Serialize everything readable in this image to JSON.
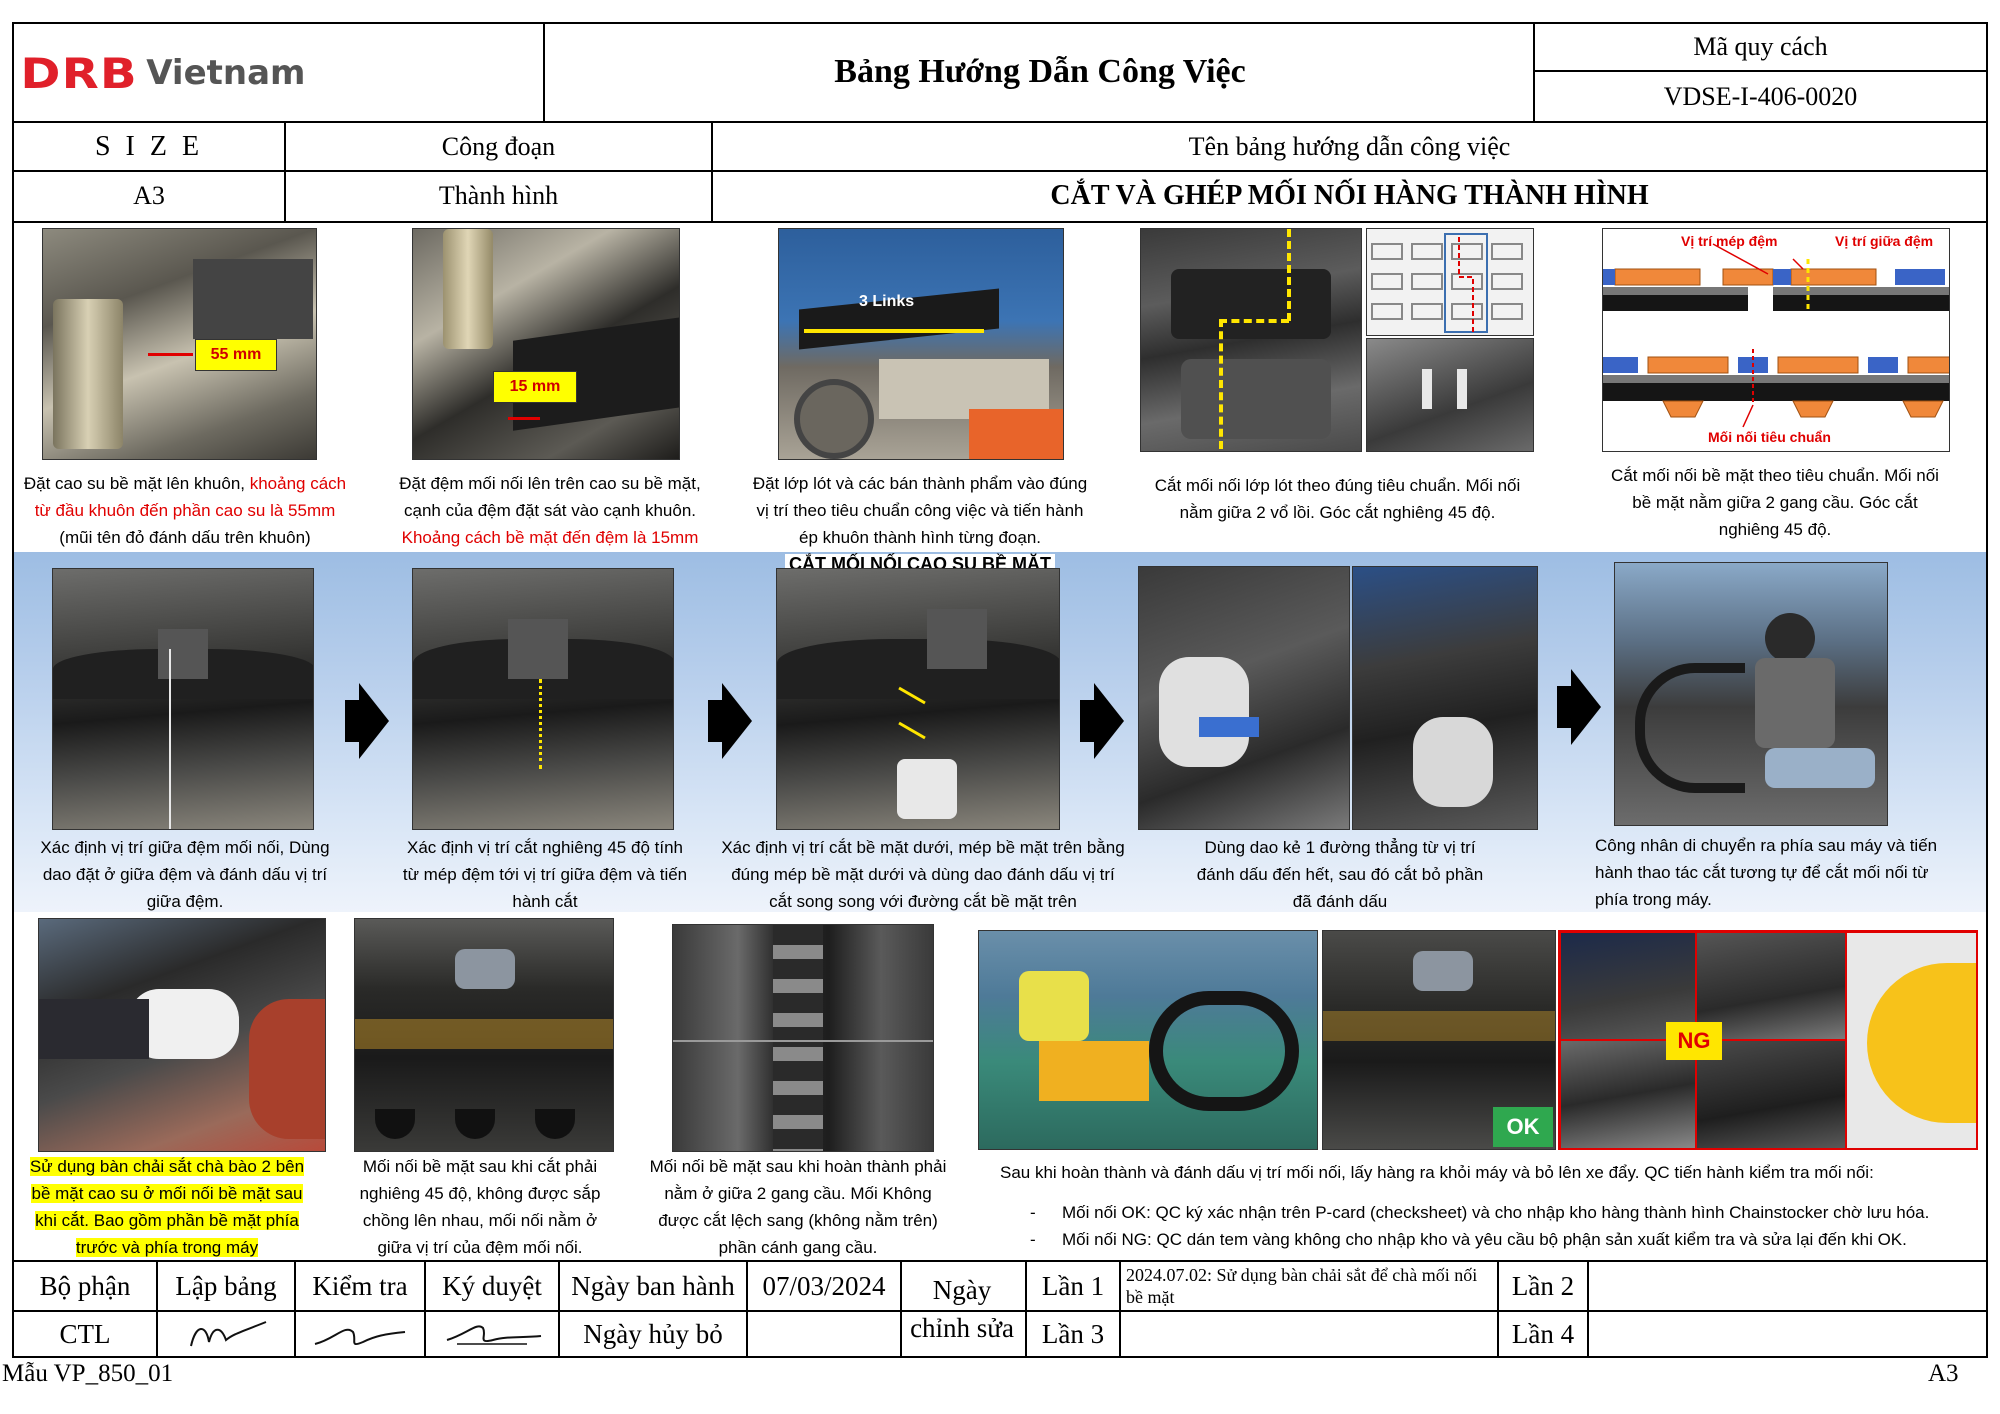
{
  "header": {
    "logo_brand": "DRB",
    "logo_country": "Vietnam",
    "title": "Bảng Hướng Dẫn Công Việc",
    "spec_label": "Mã quy cách",
    "spec_code": "VDSE-I-406-0020"
  },
  "info": {
    "size_label": "S I Z E",
    "size_value": "A3",
    "process_label": "Công đoạn",
    "process_value": "Thành hình",
    "guide_name_label": "Tên bảng hướng dẫn công việc",
    "guide_name_value": "CẮT VÀ GHÉP MỐI NỐI HÀNG THÀNH HÌNH"
  },
  "row1": {
    "step1": {
      "photo_label": "55 mm",
      "cap_a": "Đặt cao su bề mặt lên khuôn, ",
      "cap_b": "khoảng cách từ đầu khuôn đến phần cao su là 55mm",
      "cap_c": " (mũi tên đỏ đánh dấu trên khuôn)"
    },
    "step2": {
      "photo_label": "15 mm",
      "cap_a": "Đặt đệm mối nối lên trên cao su bề mặt, cạnh của đệm đặt sát vào cạnh khuôn. ",
      "cap_b": "Khoảng cách bề mặt đến đệm là 15mm"
    },
    "step3": {
      "photo_label": "3 Links",
      "cap": "Đặt lớp lót và các bán thành phẩm vào đúng vị trí theo tiêu chuẩn công việc và tiến hành ép khuôn thành hình từng đoạn."
    },
    "step4": {
      "cap": "Cắt mối nối lớp lót theo đúng tiêu chuẩn. Mối nối nằm giữa 2 vổ lồi. Góc cắt nghiêng 45 độ."
    },
    "step5": {
      "label_edge": "Vị trí mép đệm",
      "label_mid": "Vị trí giữa đệm",
      "label_std": "Mối nối tiêu chuẩn",
      "cap": "Cắt mối nối bề mặt theo tiêu chuẩn. Mối nối bề mặt nằm giữa 2 gang cầu. Góc cắt nghiêng 45 độ."
    }
  },
  "row2": {
    "section_title": "CẮT MỐI NỐI CAO SU BỀ MẶT",
    "step1": {
      "cap": "Xác định vị trí giữa đệm mối nối, Dùng dao đặt ở giữa đệm và đánh dấu vị trí giữa đệm."
    },
    "step2": {
      "cap": "Xác định vị trí cắt nghiêng 45 độ tính từ mép đệm tới vị trí giữa đệm và tiến hành cắt"
    },
    "step3": {
      "cap": "Xác định vị trí cắt bề mặt dưới, mép bề mặt trên bằng đúng mép bề mặt dưới và dùng dao đánh dấu vị trí cắt song song với đường cắt bề mặt trên"
    },
    "step4": {
      "cap": "Dùng dao kẻ 1 đường thẳng từ vị trí đánh dấu đến hết, sau đó cắt bỏ phần đã đánh dấu"
    },
    "step5": {
      "cap": "Công nhân di chuyển ra phía sau máy và tiến hành thao tác cắt tương tự để cắt mối nối từ phía trong máy."
    }
  },
  "row3": {
    "step1": {
      "cap": "Sử dụng bàn chải sắt chà bào 2 bên bề mặt cao su ở mối nối bề mặt sau khi cắt. Bao gồm phần bề mặt phía trước và phía trong máy"
    },
    "step2": {
      "cap": "Mối nối bề mặt sau khi cắt phải nghiêng 45 độ, không được sắp chồng lên nhau, mối nối nằm ở giữa vị trí của đệm mối nối."
    },
    "step3": {
      "cap": "Mối nối bề mặt sau khi hoàn thành phải nằm ở giữa 2 gang cầu. Mối Không được cắt lệch sang (không nằm trên) phần cánh gang cầu."
    },
    "ok_label": "OK",
    "ng_label": "NG",
    "qc_intro": "Sau khi hoàn thành và đánh dấu vị trí mối nối, lấy hàng ra khỏi máy và bỏ lên xe đẩy. QC tiến hành kiểm tra mối nối:",
    "qc_ok": "Mối nối OK: QC ký xác nhận trên P-card (checksheet) và cho nhập kho hàng thành hình Chainstocker chờ lưu hóa.",
    "qc_ng": "Mối nối NG: QC dán tem vàng không cho nhập kho và yêu cầu bộ phận sản xuất kiểm tra và sửa lại đến khi OK.",
    "bullet": "-"
  },
  "footer": {
    "dept_label": "Bộ phận",
    "dept_value": "CTL",
    "prepared_label": "Lập bảng",
    "checked_label": "Kiểm tra",
    "approved_label": "Ký duyệt",
    "issue_label": "Ngày ban hành",
    "issue_date": "07/03/2024",
    "cancel_label": "Ngày hủy bỏ",
    "revise_label": "Ngày chỉnh sửa",
    "rev1_label": "Lần 1",
    "rev1_text": "2024.07.02: Sử dụng bàn chải sắt để chà mối nối bề mặt",
    "rev2_label": "Lần 2",
    "rev3_label": "Lần 3",
    "rev4_label": "Lần 4",
    "form_code": "Mẫu VP_850_01",
    "paper_size": "A3"
  },
  "colors": {
    "brand_red": "#e0202a",
    "band_blue": "#a9c6ea",
    "highlight": "#ffff00",
    "ok_green": "#2fa84f",
    "ng_red": "#e00000"
  }
}
